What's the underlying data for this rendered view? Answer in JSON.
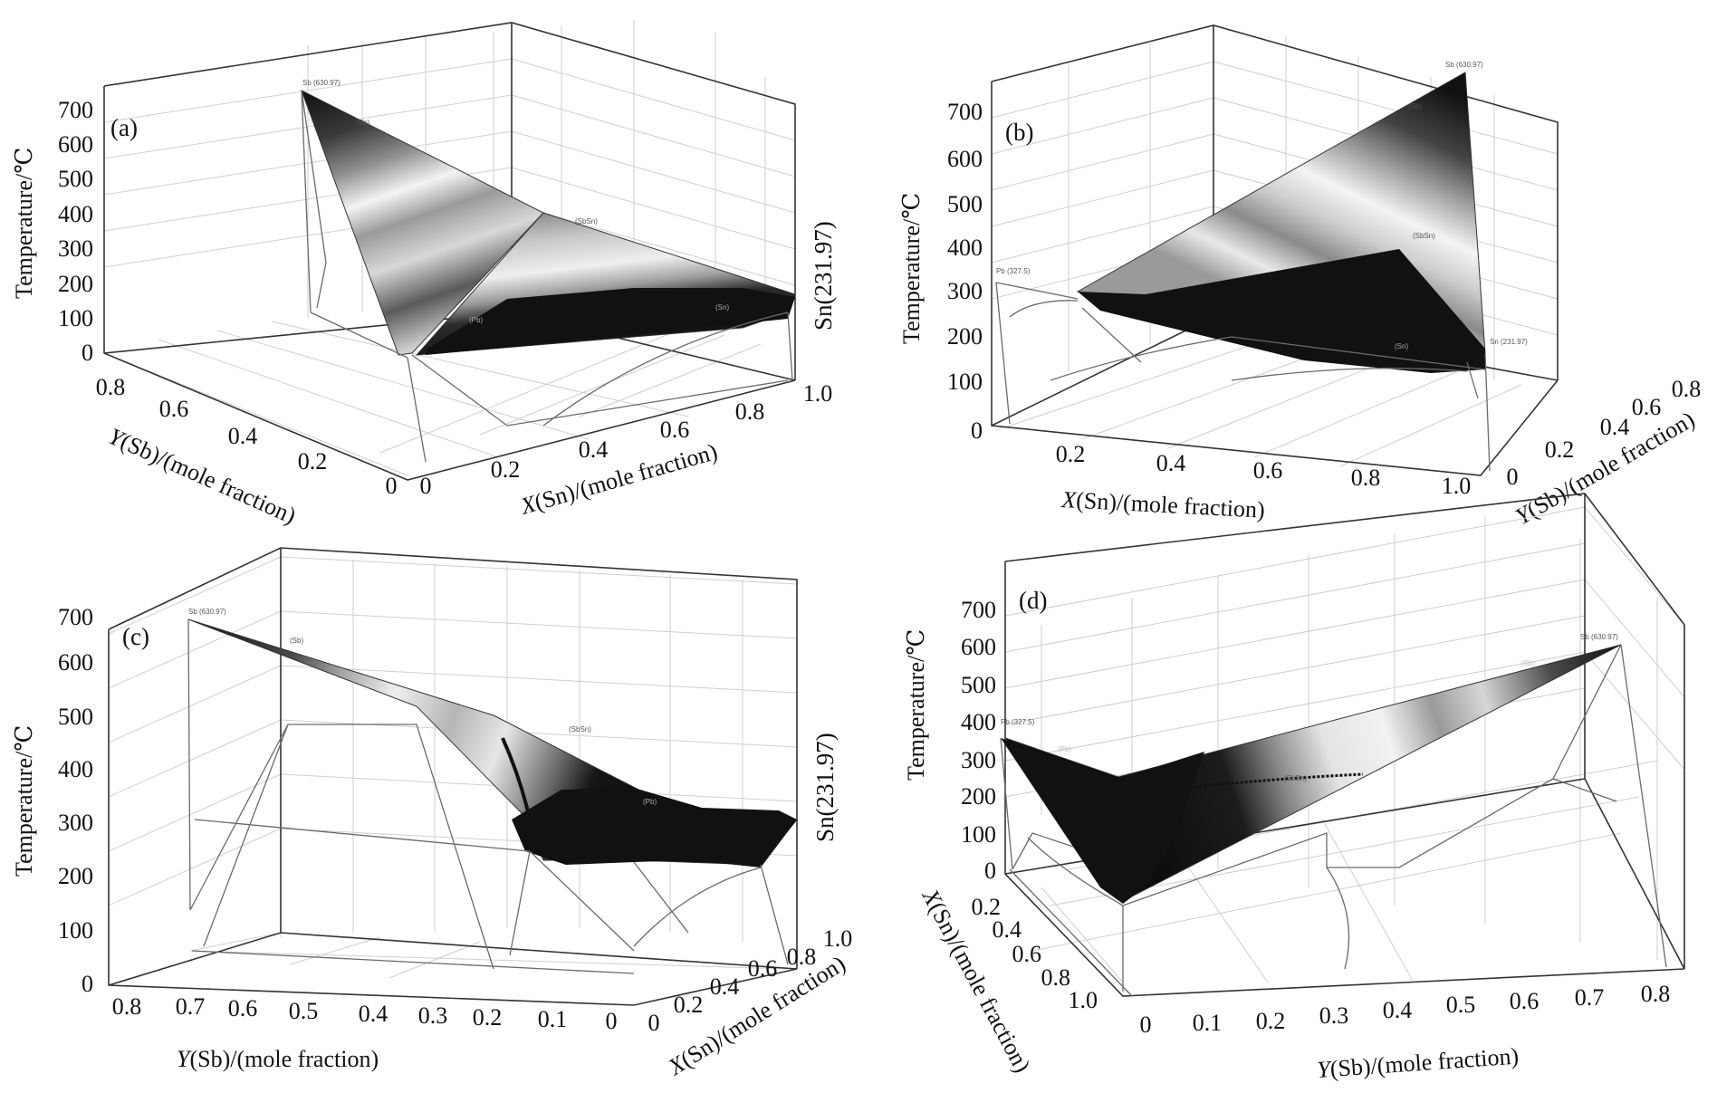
{
  "figure": {
    "panel_tags": [
      "(a)",
      "(b)",
      "(c)",
      "(d)"
    ],
    "colors": {
      "dark": "#101010",
      "mid": "#8a8a8a",
      "light": "#f2f2f2",
      "axis": "#333333",
      "grid": "#cfcfcf"
    }
  },
  "chart_data": [
    {
      "type": "surface",
      "panel": "(a)",
      "zlabel": "Temperature/℃",
      "xlabel_prefix": "X",
      "xlabel": "(Sn)/(mole fraction)",
      "ylabel_prefix": "Y",
      "ylabel": "(Sb)/(mole fraction)",
      "z_ticks": [
        "0",
        "100",
        "200",
        "300",
        "400",
        "500",
        "600",
        "700"
      ],
      "x_ticks": [
        "0",
        "0.2",
        "0.4",
        "0.6",
        "0.8",
        "1.0"
      ],
      "y_ticks": [
        "0.8",
        "0.6",
        "0.4",
        "0.2",
        "0"
      ],
      "side_label": "Sn(231.97)",
      "corner_labels": [
        "Sb (630.97)"
      ],
      "region_labels": [
        "(Sb)",
        "(SbSn)",
        "(Pb)",
        "(Sn)"
      ],
      "vertices": [
        {
          "name": "Sb",
          "melting_point_C": 630.97
        },
        {
          "name": "Sn",
          "melting_point_C": 231.97
        }
      ]
    },
    {
      "type": "surface",
      "panel": "(b)",
      "zlabel": "Temperature/℃",
      "xlabel_prefix": "X",
      "xlabel": "(Sn)/(mole fraction)",
      "ylabel_prefix": "Y",
      "ylabel": "(Sb)/(mole fraction)",
      "z_ticks": [
        "0",
        "100",
        "200",
        "300",
        "400",
        "500",
        "600",
        "700"
      ],
      "x_ticks": [
        "0.2",
        "0.4",
        "0.6",
        "0.8",
        "1.0"
      ],
      "y_ticks": [
        "0",
        "0.2",
        "0.4",
        "0.6",
        "0.8"
      ],
      "corner_labels": [
        "Sb (630.97)",
        "Pb (327.5)",
        "Sn (231.97)"
      ],
      "region_labels": [
        "(Sb)",
        "(SbSn)",
        "(Sn)"
      ],
      "vertices": [
        {
          "name": "Sb",
          "melting_point_C": 630.97
        },
        {
          "name": "Pb",
          "melting_point_C": 327.5
        },
        {
          "name": "Sn",
          "melting_point_C": 231.97
        }
      ]
    },
    {
      "type": "surface",
      "panel": "(c)",
      "zlabel": "Temperature/℃",
      "xlabel_prefix": "X",
      "xlabel": "(Sn)/(mole fraction)",
      "ylabel_prefix": "Y",
      "ylabel": "(Sb)/(mole fraction)",
      "z_ticks": [
        "0",
        "100",
        "200",
        "300",
        "400",
        "500",
        "600",
        "700"
      ],
      "y_ticks": [
        "0.8",
        "0.7",
        "0.6",
        "0.5",
        "0.4",
        "0.3",
        "0.2",
        "0.1",
        "0"
      ],
      "x_ticks": [
        "0",
        "0.2",
        "0.4",
        "0.6",
        "0.8",
        "1.0"
      ],
      "side_label": "Sn(231.97)",
      "corner_labels": [
        "Sb (630.97)"
      ],
      "region_labels": [
        "(Sb)",
        "(SbSn)",
        "(Pb)"
      ],
      "vertices": [
        {
          "name": "Sb",
          "melting_point_C": 630.97
        },
        {
          "name": "Sn",
          "melting_point_C": 231.97
        }
      ]
    },
    {
      "type": "surface",
      "panel": "(d)",
      "zlabel": "Temperature/℃",
      "xlabel_prefix": "X",
      "xlabel": "(Sn)/(mole fraction)",
      "ylabel_prefix": "Y",
      "ylabel": "(Sb)/(mole fraction)",
      "z_ticks": [
        "0",
        "100",
        "200",
        "300",
        "400",
        "500",
        "600",
        "700"
      ],
      "x_ticks": [
        "0.2",
        "0.4",
        "0.6",
        "0.8",
        "1.0"
      ],
      "y_ticks": [
        "0",
        "0.1",
        "0.2",
        "0.3",
        "0.4",
        "0.5",
        "0.6",
        "0.7",
        "0.8"
      ],
      "corner_labels": [
        "Sb (630.97)",
        "Pb (327.5)"
      ],
      "region_labels": [
        "(Sb)",
        "(Pb)",
        "(SbSn)"
      ],
      "vertices": [
        {
          "name": "Sb",
          "melting_point_C": 630.97
        },
        {
          "name": "Pb",
          "melting_point_C": 327.5
        }
      ]
    }
  ]
}
